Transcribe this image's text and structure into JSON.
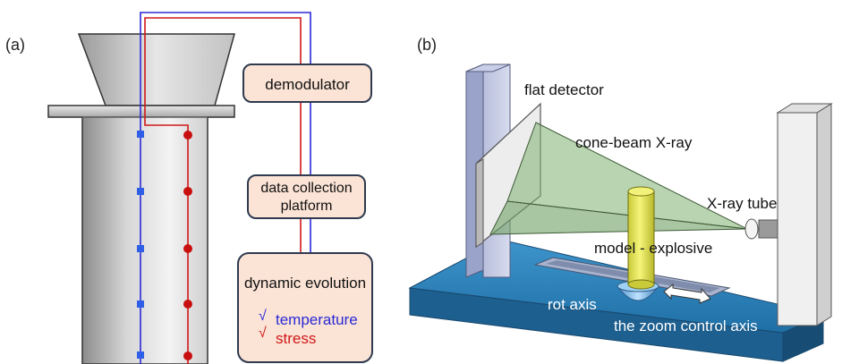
{
  "panel_a": {
    "label": "(a)",
    "demodulator": "demodulator",
    "platform_line1": "data collection",
    "platform_line2": "platform",
    "evolution_title": "dynamic evolution",
    "check_mark": "√",
    "temperature": "temperature",
    "stress": "stress"
  },
  "panel_b": {
    "label": "(b)",
    "flat_detector": "flat detector",
    "cone_beam": "cone-beam X-ray",
    "xray_tube": "X-ray tube",
    "model": "model - explosive",
    "rot_axis": "rot axis",
    "zoom_axis": "the zoom control axis"
  },
  "colors": {
    "temperature": "#2a2ad6",
    "stress": "#d01818",
    "box_fill": "#fbe3d5",
    "box_stroke": "#2f3a4f",
    "base": "#2b7fb8"
  }
}
